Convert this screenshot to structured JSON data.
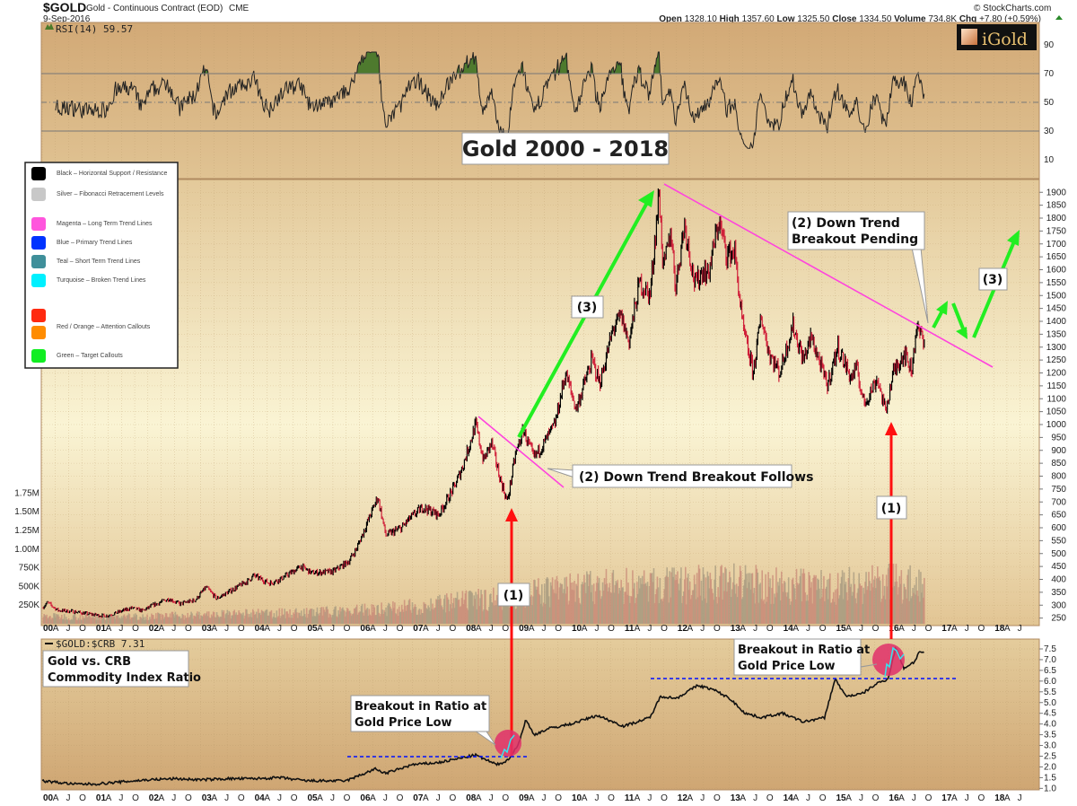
{
  "header": {
    "symbol": "$GOLD",
    "name": "Gold - Continuous Contract (EOD)",
    "exchange": "CME",
    "date": "9-Sep-2016",
    "credit": "© StockCharts.com",
    "stats": {
      "open_label": "Open",
      "open": "1328.10",
      "high_label": "High",
      "high": "1357.60",
      "low_label": "Low",
      "low": "1325.50",
      "close_label": "Close",
      "close": "1334.50",
      "volume_label": "Volume",
      "volume": "734.8K",
      "chg_label": "Chg",
      "chg": "+7.80 (+0.59%)"
    },
    "logo": "iGold"
  },
  "rsi_panel": {
    "label": "RSI(14) 59.57",
    "ticks": [
      "90",
      "70",
      "50",
      "30",
      "10"
    ]
  },
  "title": "Gold 2000 - 2018",
  "legend": [
    {
      "color": "#000000",
      "label": "Black – Horizontal Support / Resistance"
    },
    {
      "color": "#c8c8c8",
      "label": "Silver – Fibonacci Retracement Levels"
    },
    {
      "color": "#ff55dd",
      "label": "Magenta – Long Term Trend Lines"
    },
    {
      "color": "#0033ff",
      "label": "Blue – Primary Trend Lines"
    },
    {
      "color": "#3f8f9a",
      "label": "Teal – Short Term Trend Lines"
    },
    {
      "color": "#00f0ff",
      "label": "Turquoise – Broken Trend Lines"
    },
    {
      "color": "#ff2a10",
      "label": ""
    },
    {
      "color": "#ff8c00",
      "label": "Red / Orange – Attention Callouts"
    },
    {
      "color": "#11ee22",
      "label": "Green – Target Callouts"
    }
  ],
  "annotations": {
    "wave3_left": "(3)",
    "breakout_follows": "(2) Down Trend Breakout Follows",
    "breakout_pending_1": "(2) Down Trend",
    "breakout_pending_2": "Breakout Pending",
    "wave3_right": "(3)",
    "wave1_left": "(1)",
    "wave1_right": "(1)",
    "ratio_title_1": "Gold vs. CRB",
    "ratio_title_2": "Commodity Index Ratio",
    "ratio_break_1": "Breakout in Ratio at",
    "ratio_break_2": "Gold Price Low"
  },
  "ratio_panel": {
    "label": "$GOLD:$CRB 7.31"
  },
  "colors": {
    "up": "#000000",
    "down": "#d0203a",
    "trend": "#ff33dd",
    "target": "#22ee22",
    "attention": "#ff1010",
    "support": "#0010ff"
  },
  "chart_data": [
    {
      "type": "line",
      "title": "$GOLD",
      "x_axis_years": [
        "00",
        "01",
        "02",
        "03",
        "04",
        "05",
        "06",
        "07",
        "08",
        "09",
        "10",
        "11",
        "12",
        "13",
        "14",
        "15",
        "16",
        "17",
        "18"
      ],
      "x_axis_months": [
        "A",
        "J",
        "O"
      ],
      "ylim": [
        250,
        1900
      ],
      "y_ticks": [
        "1900",
        "1850",
        "1800",
        "1750",
        "1700",
        "1650",
        "1600",
        "1550",
        "1500",
        "1450",
        "1400",
        "1350",
        "1300",
        "1250",
        "1200",
        "1150",
        "1100",
        "1050",
        "1000",
        "950",
        "900",
        "850",
        "800",
        "750",
        "700",
        "650",
        "600",
        "550",
        "500",
        "450",
        "400",
        "350",
        "300",
        "250"
      ],
      "series": [
        {
          "x": [
            2000.0,
            2000.1,
            2000.3,
            2000.6,
            2000.9,
            2001.2,
            2001.4,
            2001.7,
            2001.9,
            2002.1,
            2002.4,
            2002.6,
            2002.9,
            2003.1,
            2003.3,
            2003.6,
            2003.9,
            2004.0,
            2004.3,
            2004.5,
            2004.9,
            2005.1,
            2005.5,
            2005.8,
            2005.95,
            2006.35,
            2006.5,
            2006.8,
            2006.95,
            2007.2,
            2007.5,
            2007.8,
            2007.95,
            2008.2,
            2008.35,
            2008.5,
            2008.65,
            2008.8,
            2008.95,
            2009.1,
            2009.3,
            2009.5,
            2009.7,
            2009.9,
            2010.1,
            2010.4,
            2010.55,
            2010.8,
            2010.95,
            2011.1,
            2011.3,
            2011.5,
            2011.67,
            2011.75,
            2011.9,
            2011.98,
            2012.15,
            2012.35,
            2012.5,
            2012.6,
            2012.8,
            2012.95,
            2013.1,
            2013.25,
            2013.45,
            2013.6,
            2013.75,
            2013.95,
            2014.2,
            2014.4,
            2014.55,
            2014.85,
            2015.05,
            2015.3,
            2015.4,
            2015.55,
            2015.8,
            2015.95,
            2016.1,
            2016.3,
            2016.45,
            2016.53,
            2016.69
          ],
          "y": [
            290,
            310,
            280,
            275,
            265,
            258,
            270,
            290,
            278,
            300,
            325,
            305,
            320,
            370,
            325,
            360,
            395,
            415,
            385,
            400,
            450,
            425,
            430,
            470,
            520,
            720,
            570,
            600,
            635,
            680,
            650,
            760,
            835,
            1000,
            860,
            930,
            800,
            700,
            880,
            980,
            870,
            930,
            1000,
            1200,
            1060,
            1250,
            1160,
            1370,
            1420,
            1320,
            1550,
            1500,
            1900,
            1600,
            1750,
            1530,
            1780,
            1540,
            1600,
            1580,
            1790,
            1660,
            1670,
            1380,
            1200,
            1420,
            1280,
            1200,
            1385,
            1250,
            1340,
            1150,
            1300,
            1180,
            1220,
            1080,
            1180,
            1050,
            1200,
            1280,
            1210,
            1370,
            1334
          ]
        }
      ]
    },
    {
      "type": "bar",
      "title": "Volume",
      "y_ticks": [
        "1.75M",
        "1.50M",
        "1.25M",
        "1.00M",
        "750K",
        "500K",
        "250K"
      ],
      "x": [
        2000,
        2001,
        2002,
        2003,
        2004,
        2005,
        2006,
        2007,
        2008,
        2009,
        2010,
        2011,
        2012,
        2013,
        2014,
        2015,
        2016
      ],
      "values": [
        110000,
        100000,
        110000,
        130000,
        150000,
        160000,
        200000,
        250000,
        330000,
        420000,
        520000,
        560000,
        560000,
        620000,
        560000,
        560000,
        600000
      ]
    },
    {
      "type": "line",
      "title": "$GOLD:$CRB",
      "ylim": [
        1.0,
        7.5
      ],
      "y_ticks": [
        "7.5",
        "7.0",
        "6.5",
        "6.0",
        "5.5",
        "5.0",
        "4.5",
        "4.0",
        "3.5",
        "3.0",
        "2.5",
        "2.0",
        "1.5",
        "1.0"
      ],
      "series": [
        {
          "x": [
            2000,
            2000.6,
            2001,
            2001.5,
            2002,
            2002.5,
            2003,
            2003.5,
            2004,
            2004.5,
            2005,
            2005.75,
            2006.3,
            2006.5,
            2007,
            2007.5,
            2008.2,
            2008.6,
            2008.8,
            2009.0,
            2009.15,
            2009.3,
            2009.6,
            2010,
            2010.5,
            2011,
            2011.5,
            2011.7,
            2012,
            2012.4,
            2012.7,
            2013,
            2013.3,
            2013.6,
            2014,
            2014.4,
            2014.8,
            2015.0,
            2015.2,
            2015.5,
            2015.8,
            2016.0,
            2016.15,
            2016.3,
            2016.5,
            2016.6,
            2016.69
          ],
          "y": [
            1.35,
            1.2,
            1.2,
            1.3,
            1.4,
            1.45,
            1.4,
            1.45,
            1.45,
            1.5,
            1.35,
            1.35,
            1.9,
            1.7,
            2.1,
            2.2,
            2.55,
            2.1,
            2.3,
            3.0,
            4.2,
            3.5,
            3.8,
            4.0,
            4.4,
            3.9,
            4.3,
            5.3,
            5.2,
            5.8,
            5.6,
            5.2,
            4.5,
            4.3,
            4.5,
            4.1,
            4.3,
            6.1,
            5.3,
            5.4,
            5.9,
            6.1,
            7.6,
            6.6,
            6.9,
            7.4,
            7.31
          ]
        }
      ],
      "support_levels": [
        2.55,
        6.05
      ]
    }
  ]
}
